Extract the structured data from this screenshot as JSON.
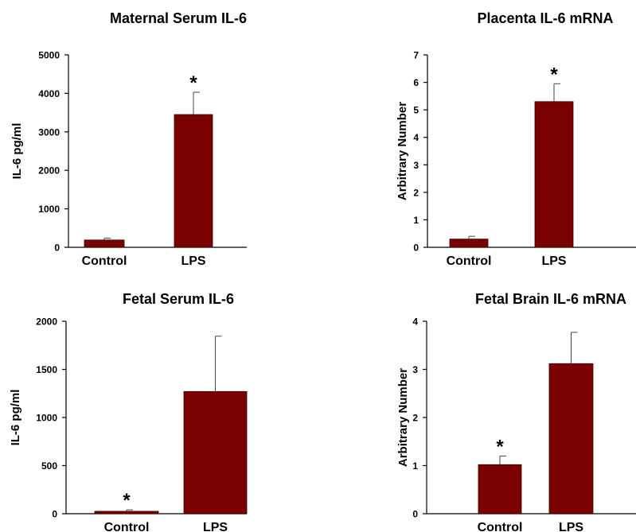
{
  "chart_data": [
    {
      "type": "bar",
      "title": "Maternal Serum IL-6",
      "ylabel": "IL-6 pg/ml",
      "xlabel": "",
      "categories": [
        "Control",
        "LPS"
      ],
      "values": [
        190,
        3450
      ],
      "error": [
        50,
        580
      ],
      "significance": [
        "",
        "*"
      ],
      "ylim": [
        0,
        5000
      ],
      "yticks": [
        "0",
        "1000",
        "2000",
        "3000",
        "4000",
        "5000"
      ],
      "bar_color": "#7b0000"
    },
    {
      "type": "bar",
      "title": "Placenta IL-6 mRNA",
      "ylabel": "Arbitrary Number",
      "xlabel": "",
      "categories": [
        "Control",
        "LPS"
      ],
      "values": [
        0.3,
        5.3
      ],
      "error": [
        0.1,
        0.65
      ],
      "significance": [
        "",
        "*"
      ],
      "ylim": [
        0,
        7
      ],
      "yticks": [
        "0",
        "1",
        "2",
        "3",
        "4",
        "5",
        "6",
        "7"
      ],
      "bar_color": "#7b0000"
    },
    {
      "type": "bar",
      "title": "Fetal Serum IL-6",
      "ylabel": "IL-6 pg/ml",
      "xlabel": "",
      "categories": [
        "Control",
        "LPS"
      ],
      "values": [
        25,
        1270
      ],
      "error": [
        15,
        575
      ],
      "significance": [
        "*",
        ""
      ],
      "ylim": [
        0,
        2000
      ],
      "yticks": [
        "0",
        "500",
        "1000",
        "1500",
        "2000"
      ],
      "bar_color": "#7b0000"
    },
    {
      "type": "bar",
      "title": "Fetal Brain IL-6 mRNA",
      "ylabel": "Arbitrary Number",
      "xlabel": "",
      "categories": [
        "Control",
        "LPS"
      ],
      "values": [
        1.02,
        3.12
      ],
      "error": [
        0.18,
        0.65
      ],
      "significance": [
        "*",
        ""
      ],
      "ylim": [
        0,
        4
      ],
      "yticks": [
        "0",
        "1",
        "2",
        "3",
        "4"
      ],
      "bar_color": "#7b0000"
    }
  ]
}
